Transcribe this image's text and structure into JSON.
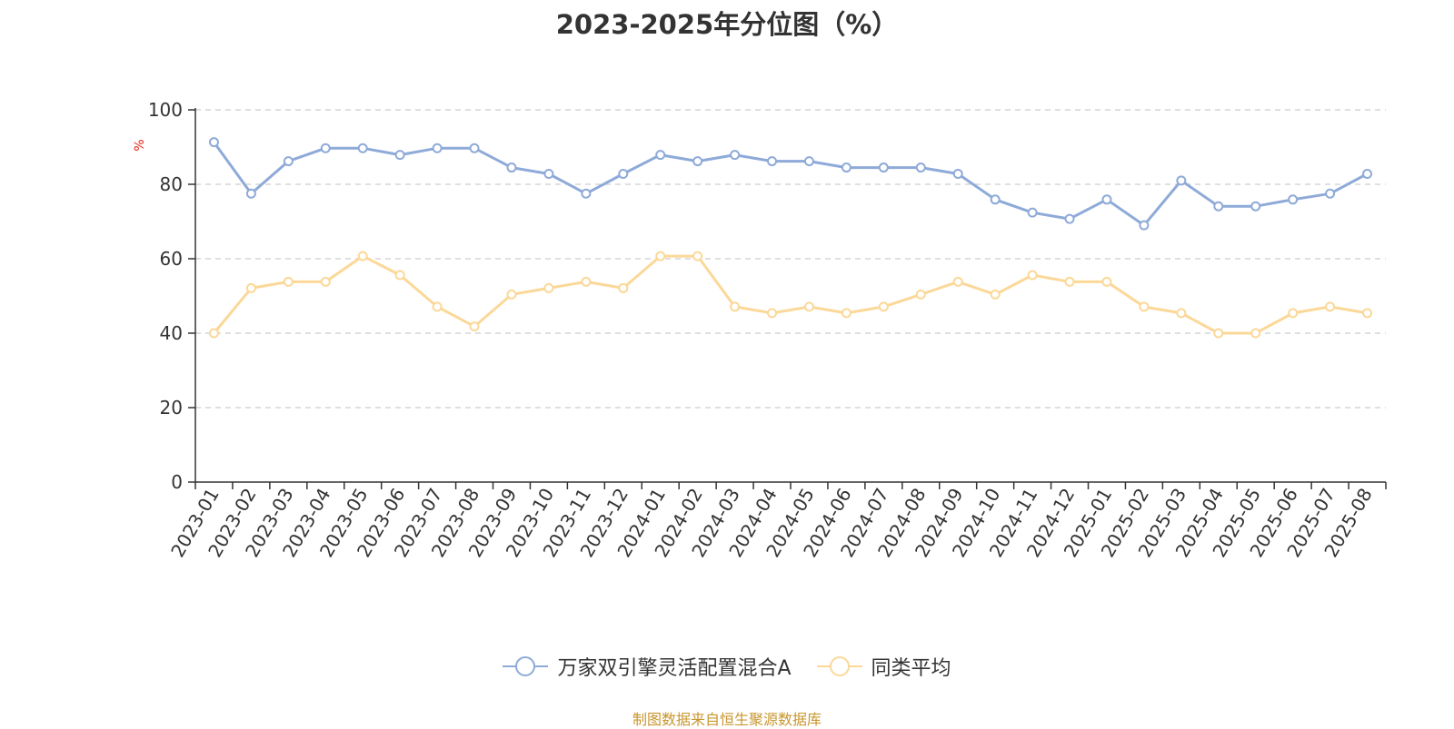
{
  "colors": {
    "series_a": "#8eaad8",
    "series_b": "#fbd898",
    "grid": "#cccccc",
    "axis": "#333333",
    "unit": "#e8261a",
    "source": "#c8962d"
  },
  "chart_data": {
    "type": "line",
    "title": "2023-2025年分位图（%）",
    "ylabel": "%",
    "ylim": [
      0,
      100
    ],
    "yticks": [
      0,
      20,
      40,
      60,
      80,
      100
    ],
    "grid": "horizontal-dashed",
    "legend_position": "bottom",
    "categories": [
      "2023-01",
      "2023-02",
      "2023-03",
      "2023-04",
      "2023-05",
      "2023-06",
      "2023-07",
      "2023-08",
      "2023-09",
      "2023-10",
      "2023-11",
      "2023-12",
      "2024-01",
      "2024-02",
      "2024-03",
      "2024-04",
      "2024-05",
      "2024-06",
      "2024-07",
      "2024-08",
      "2024-09",
      "2024-10",
      "2024-11",
      "2024-12",
      "2025-01",
      "2025-02",
      "2025-03",
      "2025-04",
      "2025-05",
      "2025-06",
      "2025-07",
      "2025-08"
    ],
    "series": [
      {
        "name": "万家双引擎灵活配置混合A",
        "color": "#8eaad8",
        "values": [
          91.3,
          77.5,
          86.2,
          89.7,
          89.7,
          87.9,
          89.7,
          89.7,
          84.5,
          82.8,
          77.5,
          82.8,
          87.9,
          86.2,
          87.9,
          86.2,
          86.2,
          84.5,
          84.5,
          84.5,
          82.8,
          75.9,
          72.4,
          70.7,
          75.9,
          69.0,
          81.0,
          74.1,
          74.1,
          75.9,
          77.5,
          82.8
        ]
      },
      {
        "name": "同类平均",
        "color": "#fbd898",
        "values": [
          40.0,
          52.1,
          53.8,
          53.8,
          60.7,
          55.6,
          47.1,
          41.8,
          50.4,
          52.1,
          53.8,
          52.1,
          60.7,
          60.7,
          47.1,
          45.4,
          47.1,
          45.4,
          47.1,
          50.4,
          53.8,
          50.4,
          55.6,
          53.8,
          53.8,
          47.1,
          45.4,
          40.0,
          40.0,
          45.4,
          47.1,
          45.4
        ]
      }
    ]
  },
  "footer": {
    "source": "制图数据来自恒生聚源数据库"
  }
}
